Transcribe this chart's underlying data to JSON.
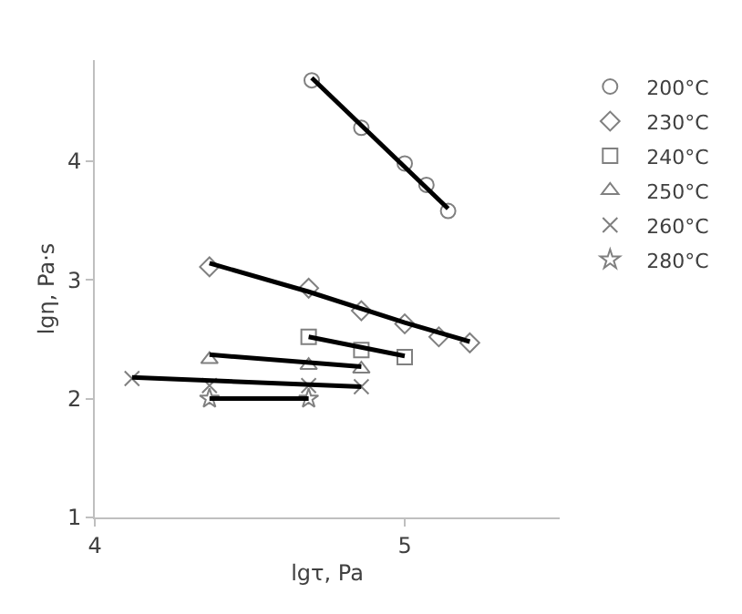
{
  "chart_data": {
    "type": "scatter",
    "xlabel": "lgτ, Pa",
    "ylabel": "lgη, Pa·s",
    "xlim": [
      4,
      5.5
    ],
    "xticks": [
      4,
      5
    ],
    "ylim": [
      1,
      4.85
    ],
    "yticks": [
      1,
      2,
      3,
      4
    ],
    "legend": "top right",
    "series": [
      {
        "name": "200°C",
        "color": "#808080",
        "marker": "circle",
        "x": [
          4.7,
          4.86,
          5.0,
          5.07,
          5.14
        ],
        "values": [
          4.68,
          4.28,
          3.98,
          3.8,
          3.58
        ]
      },
      {
        "name": "230°C",
        "color": "#808080",
        "marker": "diamond",
        "x": [
          4.37,
          4.69,
          4.86,
          5.0,
          5.11,
          5.21
        ],
        "values": [
          3.11,
          2.93,
          2.74,
          2.63,
          2.52,
          2.47
        ]
      },
      {
        "name": "240°C",
        "color": "#808080",
        "marker": "square",
        "x": [
          4.69,
          4.86,
          5.0
        ],
        "values": [
          2.52,
          2.41,
          2.35
        ]
      },
      {
        "name": "250°C",
        "color": "#808080",
        "marker": "triangle",
        "x": [
          4.37,
          4.69,
          4.86
        ],
        "values": [
          2.33,
          2.28,
          2.25
        ]
      },
      {
        "name": "260°C",
        "color": "#808080",
        "marker": "cross",
        "x": [
          4.12,
          4.37,
          4.69,
          4.86
        ],
        "values": [
          2.17,
          2.11,
          2.11,
          2.1
        ]
      },
      {
        "name": "280°C",
        "color": "#808080",
        "marker": "star",
        "x": [
          4.37,
          4.69
        ],
        "values": [
          2.0,
          2.0
        ]
      },
      {
        "type": "line",
        "color": "#000000",
        "marker": "none",
        "x": [
          4.7,
          5.14
        ],
        "values": [
          4.7,
          3.6
        ]
      },
      {
        "type": "line",
        "color": "#000000",
        "marker": "none",
        "x": [
          4.37,
          4.69,
          5.0,
          5.21
        ],
        "values": [
          3.14,
          2.9,
          2.64,
          2.48
        ]
      },
      {
        "type": "line",
        "color": "#000000",
        "marker": "none",
        "x": [
          4.69,
          5.0
        ],
        "values": [
          2.52,
          2.36
        ]
      },
      {
        "type": "line",
        "color": "#000000",
        "marker": "none",
        "x": [
          4.37,
          4.86
        ],
        "values": [
          2.37,
          2.27
        ]
      },
      {
        "type": "line",
        "color": "#000000",
        "marker": "none",
        "x": [
          4.12,
          4.86
        ],
        "values": [
          2.18,
          2.1
        ]
      },
      {
        "type": "line",
        "color": "#000000",
        "marker": "none",
        "x": [
          4.37,
          4.69
        ],
        "values": [
          2.0,
          2.0
        ]
      }
    ]
  }
}
